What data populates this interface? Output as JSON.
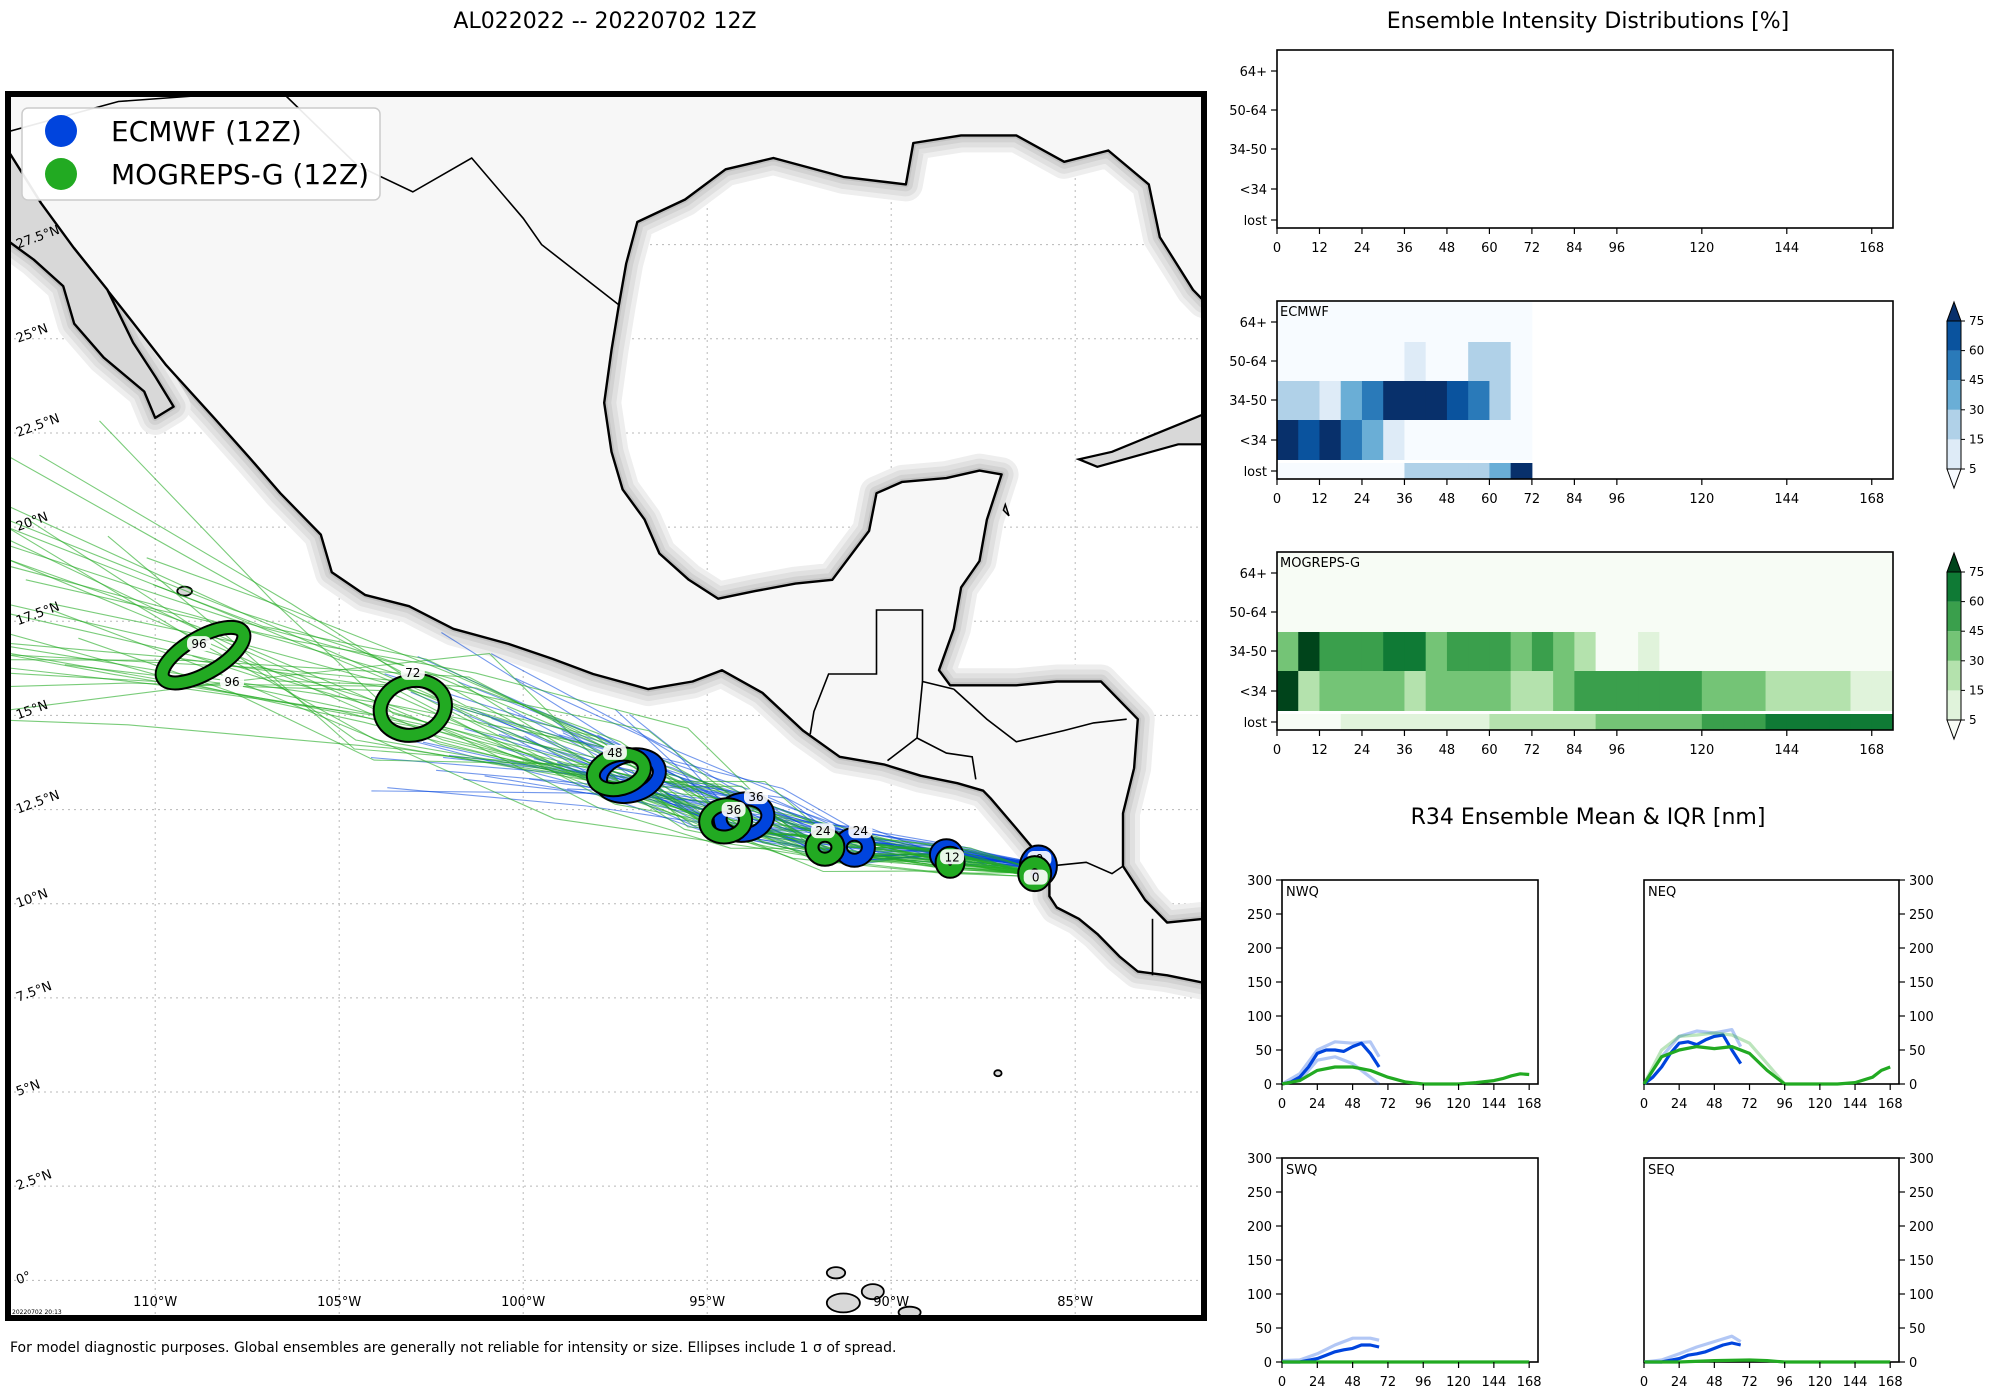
{
  "header": {
    "map_title": "AL022022 -- 20220702 12Z",
    "intensity_title": "Ensemble Intensity Distributions [%]",
    "r34_title": "R34 Ensemble Mean & IQR [nm]"
  },
  "footer": {
    "note": "For model diagnostic purposes. Global ensembles are generally not reliable for intensity or size. Ellipses include 1 σ of spread.",
    "stamp": "20220702 20:13"
  },
  "colors": {
    "ecmwf": "#0044dd",
    "mogreps": "#22aa22",
    "land": "#f7f7f7",
    "coast_halo": "#d0d0d0"
  },
  "legend": [
    {
      "label": "ECMWF (12Z)",
      "color": "#0044dd"
    },
    {
      "label": "MOGREPS-G (12Z)",
      "color": "#22aa22"
    }
  ],
  "chart_data": [
    {
      "type": "map",
      "name": "track-map",
      "lon_ticks": [
        "110°W",
        "105°W",
        "100°W",
        "95°W",
        "90°W",
        "85°W"
      ],
      "lat_ticks": [
        "0°",
        "2.5°N",
        "5°N",
        "7.5°N",
        "10°N",
        "12.5°N",
        "15°N",
        "17.5°N",
        "20°N",
        "22.5°N",
        "25°N",
        "27.5°N"
      ],
      "lon_range": [
        -114,
        -81.5
      ],
      "lat_range": [
        -1,
        31.5
      ],
      "ecmwf_positions": [
        {
          "hour": "0",
          "lon": -86.0,
          "lat": 11.0
        },
        {
          "hour": "12",
          "lon": -88.5,
          "lat": 11.3
        },
        {
          "hour": "24",
          "lon": -91.0,
          "lat": 11.5
        },
        {
          "hour": "36",
          "lon": -94.0,
          "lat": 12.3
        },
        {
          "hour": "48",
          "lon": -97.1,
          "lat": 13.4
        }
      ],
      "mogreps_positions": [
        {
          "hour": "0",
          "lon": -86.1,
          "lat": 10.8
        },
        {
          "hour": "12",
          "lon": -88.4,
          "lat": 11.1
        },
        {
          "hour": "24",
          "lon": -91.8,
          "lat": 11.5
        },
        {
          "hour": "36",
          "lon": -94.5,
          "lat": 12.2
        },
        {
          "hour": "48",
          "lon": -97.4,
          "lat": 13.5
        },
        {
          "hour": "72",
          "lon": -103.0,
          "lat": 15.2
        },
        {
          "hour": "96",
          "lon": -108.7,
          "lat": 16.6
        }
      ]
    },
    {
      "type": "heatmap",
      "name": "ensemble-intensity-total",
      "x_ticks": [
        0,
        12,
        24,
        36,
        48,
        60,
        72,
        84,
        96,
        120,
        144,
        168
      ],
      "y_categories": [
        "lost",
        "<34",
        "34-50",
        "50-64",
        "64+"
      ],
      "bins": []
    },
    {
      "type": "heatmap",
      "name": "ensemble-intensity-ecmwf",
      "label": "ECMWF",
      "x_ticks": [
        0,
        12,
        24,
        36,
        48,
        60,
        72,
        84,
        96,
        120,
        144,
        168
      ],
      "y_categories": [
        "lost",
        "<34",
        "34-50",
        "50-64",
        "64+"
      ],
      "x_step": 6,
      "cols_x": [
        0,
        6,
        12,
        18,
        24,
        30,
        36,
        42,
        48,
        54,
        60,
        66
      ],
      "values": {
        "64+": [
          0,
          0,
          0,
          0,
          0,
          0,
          0,
          0,
          0,
          0,
          0,
          0
        ],
        "50-64": [
          0,
          0,
          0,
          0,
          0,
          0,
          10,
          0,
          0,
          20,
          20,
          0
        ],
        "34-50": [
          20,
          20,
          10,
          30,
          50,
          80,
          80,
          80,
          60,
          45,
          20,
          0
        ],
        "<34": [
          80,
          60,
          80,
          55,
          30,
          10,
          0,
          0,
          0,
          0,
          0,
          0
        ],
        "lost": [
          0,
          0,
          0,
          0,
          0,
          0,
          15,
          20,
          20,
          20,
          30,
          80
        ]
      },
      "colorbar": {
        "ticks": [
          5,
          15,
          30,
          45,
          60,
          75
        ],
        "colors": [
          "#f7fbff",
          "#deebf7",
          "#b0d1e8",
          "#6aaed6",
          "#2a7ab9",
          "#0a539e",
          "#08306b"
        ]
      }
    },
    {
      "type": "heatmap",
      "name": "ensemble-intensity-mogreps",
      "label": "MOGREPS-G",
      "x_ticks": [
        0,
        12,
        24,
        36,
        48,
        60,
        72,
        84,
        96,
        120,
        144,
        168
      ],
      "y_categories": [
        "lost",
        "<34",
        "34-50",
        "50-64",
        "64+"
      ],
      "x_step": 6,
      "cols_x": [
        0,
        6,
        12,
        18,
        24,
        30,
        36,
        42,
        48,
        54,
        60,
        66,
        72,
        78,
        84,
        90,
        96,
        102,
        108,
        114,
        120,
        126,
        132,
        138,
        144,
        150,
        156,
        162,
        168
      ],
      "values": {
        "64+": [
          0,
          0,
          0,
          0,
          0,
          0,
          0,
          0,
          0,
          0,
          0,
          0,
          0,
          0,
          0,
          0,
          0,
          0,
          0,
          0,
          0,
          0,
          0,
          0,
          0,
          0,
          0,
          0,
          0
        ],
        "50-64": [
          0,
          0,
          0,
          0,
          0,
          0,
          0,
          0,
          0,
          0,
          0,
          0,
          0,
          0,
          0,
          0,
          0,
          0,
          0,
          0,
          0,
          0,
          0,
          0,
          0,
          0,
          0,
          0,
          0
        ],
        "34-50": [
          30,
          85,
          50,
          50,
          50,
          65,
          65,
          35,
          50,
          50,
          50,
          35,
          50,
          35,
          20,
          0,
          0,
          10,
          0,
          0,
          0,
          0,
          0,
          0,
          0,
          0,
          0,
          0,
          0
        ],
        "<34": [
          80,
          20,
          30,
          30,
          30,
          30,
          20,
          40,
          30,
          30,
          30,
          20,
          20,
          40,
          50,
          50,
          50,
          50,
          50,
          50,
          30,
          30,
          30,
          20,
          20,
          20,
          20,
          10,
          10
        ],
        "lost": [
          0,
          0,
          0,
          10,
          10,
          10,
          10,
          10,
          10,
          10,
          15,
          15,
          20,
          20,
          25,
          30,
          30,
          35,
          40,
          40,
          45,
          45,
          50,
          60,
          70,
          70,
          70,
          70,
          70
        ]
      },
      "colorbar": {
        "ticks": [
          5,
          15,
          30,
          45,
          60,
          75
        ],
        "colors": [
          "#f7fcf5",
          "#e0f3db",
          "#b4e2ad",
          "#74c476",
          "#3a9f4c",
          "#0f7a35",
          "#00441b"
        ]
      }
    },
    {
      "type": "line",
      "name": "r34-nwq",
      "label": "NWQ",
      "x_ticks": [
        0,
        24,
        48,
        72,
        96,
        120,
        144,
        168
      ],
      "y_ticks": [
        0,
        50,
        100,
        150,
        200,
        250,
        300
      ],
      "ylim": [
        0,
        300
      ],
      "series": [
        {
          "model": "ECMWF",
          "role": "mean",
          "x": [
            0,
            6,
            12,
            18,
            24,
            30,
            36,
            42,
            48,
            54,
            60,
            66
          ],
          "y": [
            0,
            3,
            10,
            25,
            45,
            50,
            50,
            48,
            55,
            60,
            45,
            25
          ]
        },
        {
          "model": "ECMWF",
          "role": "iqr-upper",
          "x": [
            0,
            12,
            24,
            36,
            48,
            60,
            66
          ],
          "y": [
            0,
            15,
            50,
            62,
            60,
            62,
            40
          ]
        },
        {
          "model": "ECMWF",
          "role": "iqr-lower",
          "x": [
            0,
            12,
            24,
            36,
            48,
            60,
            66
          ],
          "y": [
            0,
            5,
            35,
            40,
            30,
            10,
            0
          ]
        },
        {
          "model": "MOGREPS-G",
          "role": "mean",
          "x": [
            0,
            12,
            24,
            36,
            48,
            60,
            72,
            84,
            96,
            108,
            120,
            132,
            144,
            150,
            156,
            162,
            168
          ],
          "y": [
            0,
            5,
            20,
            25,
            25,
            20,
            10,
            3,
            0,
            0,
            0,
            2,
            5,
            8,
            12,
            15,
            14
          ]
        }
      ]
    },
    {
      "type": "line",
      "name": "r34-neq",
      "label": "NEQ",
      "x_ticks": [
        0,
        24,
        48,
        72,
        96,
        120,
        144,
        168
      ],
      "y_ticks": [
        0,
        50,
        100,
        150,
        200,
        250,
        300
      ],
      "ylim": [
        0,
        300
      ],
      "series": [
        {
          "model": "ECMWF",
          "role": "mean",
          "x": [
            0,
            6,
            12,
            18,
            24,
            30,
            36,
            42,
            48,
            54,
            60,
            66
          ],
          "y": [
            0,
            10,
            25,
            45,
            60,
            62,
            58,
            65,
            70,
            72,
            50,
            30
          ]
        },
        {
          "model": "ECMWF",
          "role": "iqr-upper",
          "x": [
            0,
            12,
            24,
            36,
            48,
            60,
            66
          ],
          "y": [
            0,
            40,
            70,
            78,
            75,
            80,
            55
          ]
        },
        {
          "model": "MOGREPS-G",
          "role": "mean",
          "x": [
            0,
            6,
            12,
            24,
            36,
            48,
            60,
            72,
            84,
            96,
            108,
            120,
            132,
            144,
            156,
            162,
            168
          ],
          "y": [
            0,
            20,
            40,
            50,
            55,
            52,
            55,
            45,
            20,
            0,
            0,
            0,
            0,
            2,
            10,
            20,
            25
          ]
        },
        {
          "model": "MOGREPS-G",
          "role": "iqr-upper",
          "x": [
            0,
            12,
            24,
            36,
            48,
            60,
            72,
            84,
            96
          ],
          "y": [
            0,
            50,
            70,
            72,
            75,
            72,
            60,
            30,
            0
          ]
        }
      ]
    },
    {
      "type": "line",
      "name": "r34-swq",
      "label": "SWQ",
      "x_ticks": [
        0,
        24,
        48,
        72,
        96,
        120,
        144,
        168
      ],
      "y_ticks": [
        0,
        50,
        100,
        150,
        200,
        250,
        300
      ],
      "ylim": [
        0,
        300
      ],
      "series": [
        {
          "model": "ECMWF",
          "role": "mean",
          "x": [
            0,
            12,
            24,
            30,
            36,
            42,
            48,
            54,
            60,
            66
          ],
          "y": [
            0,
            0,
            5,
            10,
            15,
            18,
            20,
            25,
            25,
            22
          ]
        },
        {
          "model": "ECMWF",
          "role": "iqr-upper",
          "x": [
            0,
            12,
            24,
            36,
            48,
            60,
            66
          ],
          "y": [
            2,
            3,
            12,
            25,
            35,
            35,
            32
          ]
        },
        {
          "model": "MOGREPS-G",
          "role": "mean",
          "x": [
            0,
            24,
            48,
            72,
            96,
            120,
            144,
            168
          ],
          "y": [
            0,
            0,
            0,
            0,
            0,
            0,
            0,
            0
          ]
        }
      ]
    },
    {
      "type": "line",
      "name": "r34-seq",
      "label": "SEQ",
      "x_ticks": [
        0,
        24,
        48,
        72,
        96,
        120,
        144,
        168
      ],
      "y_ticks": [
        0,
        50,
        100,
        150,
        200,
        250,
        300
      ],
      "ylim": [
        0,
        300
      ],
      "series": [
        {
          "model": "ECMWF",
          "role": "mean",
          "x": [
            0,
            12,
            24,
            30,
            36,
            42,
            48,
            54,
            60,
            66
          ],
          "y": [
            0,
            0,
            5,
            10,
            12,
            15,
            20,
            25,
            28,
            25
          ]
        },
        {
          "model": "ECMWF",
          "role": "iqr-upper",
          "x": [
            0,
            12,
            24,
            36,
            48,
            60,
            66
          ],
          "y": [
            0,
            3,
            12,
            22,
            30,
            38,
            30
          ]
        },
        {
          "model": "MOGREPS-G",
          "role": "mean",
          "x": [
            0,
            24,
            48,
            72,
            84,
            96,
            120,
            144,
            168
          ],
          "y": [
            0,
            0,
            2,
            3,
            2,
            0,
            0,
            0,
            0
          ]
        }
      ]
    }
  ]
}
